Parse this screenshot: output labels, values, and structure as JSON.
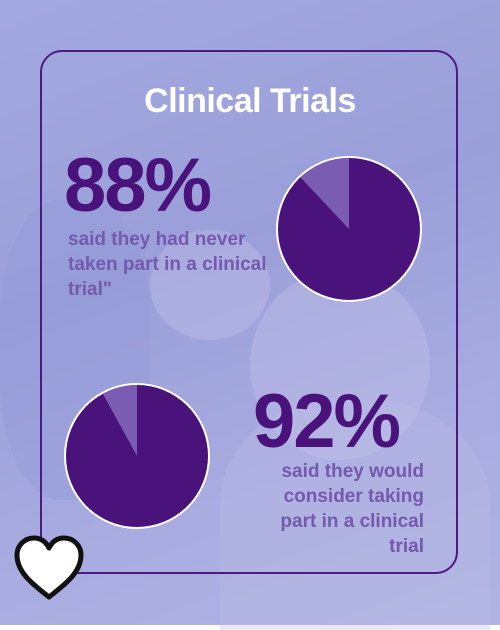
{
  "title": "Clinical Trials",
  "stats": [
    {
      "value": "88%",
      "description": "said they had never taken part in a clinical trial\""
    },
    {
      "value": "92%",
      "description": "said they would consider taking part in a clinical trial"
    }
  ],
  "colors": {
    "accent": "#4a137b",
    "slice_minor": "#7a5db3",
    "text_muted": "#7459ad",
    "frame": "#4c1b80",
    "background": "#a3a9e0"
  },
  "icons": [
    "heart-icon"
  ],
  "chart_data": [
    {
      "type": "pie",
      "categories": [
        "",
        ""
      ],
      "values": [
        88,
        12
      ]
    },
    {
      "type": "pie",
      "categories": [
        "",
        ""
      ],
      "values": [
        92,
        8
      ]
    }
  ]
}
